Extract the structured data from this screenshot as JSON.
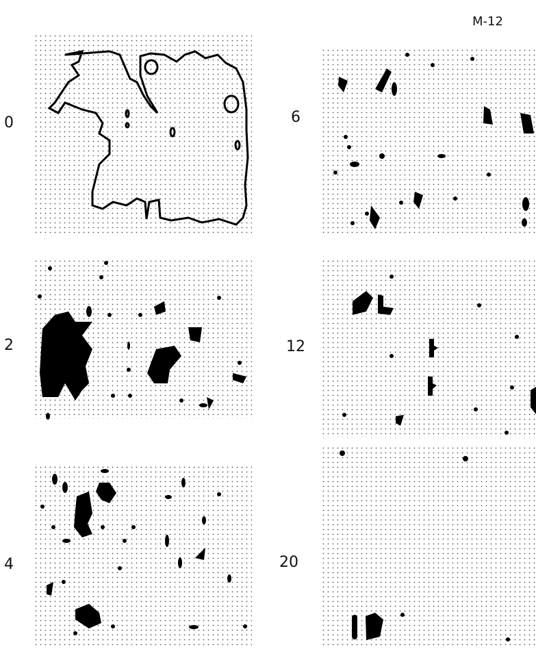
{
  "header": {
    "label": "M-12"
  },
  "panels": [
    {
      "label": "0"
    },
    {
      "label": "6"
    },
    {
      "label": "2"
    },
    {
      "label": "12"
    },
    {
      "label": "4"
    },
    {
      "label": "20"
    }
  ]
}
